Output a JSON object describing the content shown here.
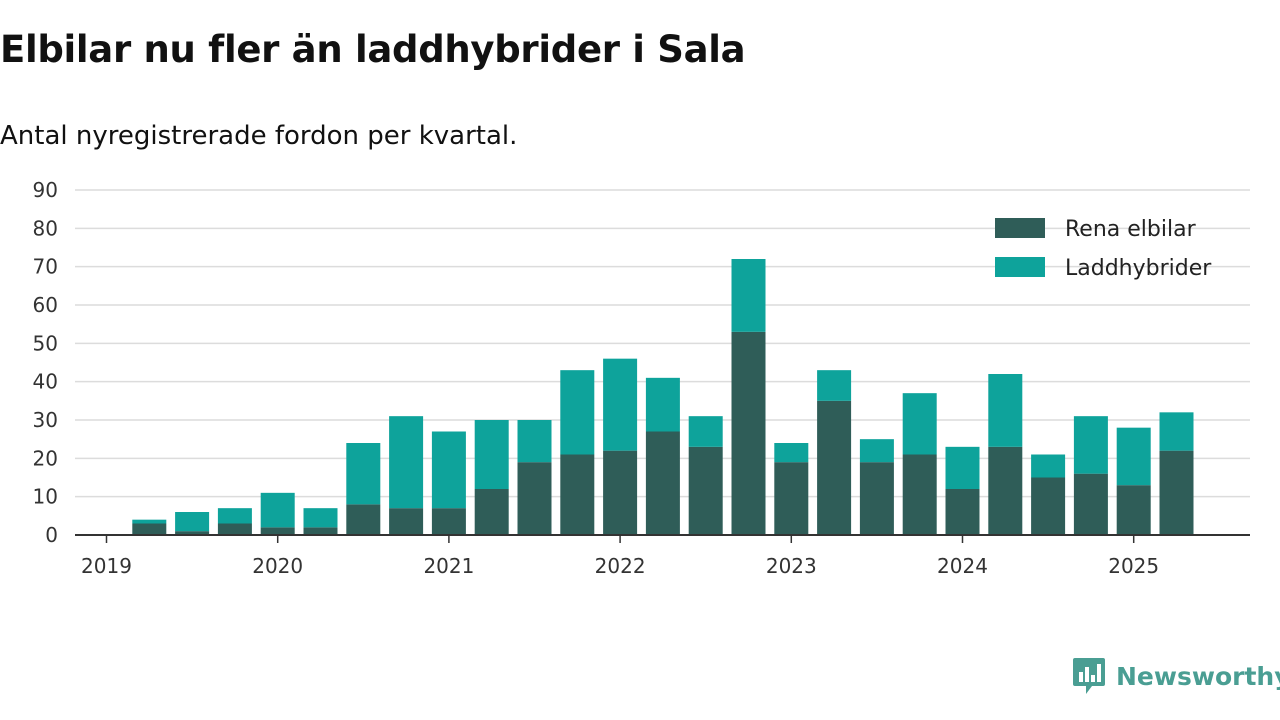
{
  "title": "Elbilar nu fler än laddhybrider i Sala",
  "subtitle": "Antal nyregistrerade fordon per kvartal.",
  "brand": "Newsworthy",
  "colors": {
    "elbilar": "#2f5d58",
    "laddhybrider": "#0ea39b",
    "grid": "#dcdcdc",
    "axis": "#333333"
  },
  "chart_data": {
    "type": "bar",
    "stacked": true,
    "categories": [
      "2019 Q1",
      "2019 Q2",
      "2019 Q3",
      "2019 Q4",
      "2020 Q1",
      "2020 Q2",
      "2020 Q3",
      "2020 Q4",
      "2021 Q1",
      "2021 Q2",
      "2021 Q3",
      "2021 Q4",
      "2022 Q1",
      "2022 Q2",
      "2022 Q3",
      "2022 Q4",
      "2023 Q1",
      "2023 Q2",
      "2023 Q3",
      "2023 Q4",
      "2024 Q1",
      "2024 Q2",
      "2024 Q3",
      "2024 Q4",
      "2025 Q1",
      "2025 Q2"
    ],
    "series": [
      {
        "name": "Rena elbilar",
        "values": [
          0,
          3,
          1,
          3,
          2,
          2,
          8,
          7,
          7,
          12,
          19,
          21,
          22,
          27,
          23,
          53,
          19,
          35,
          19,
          21,
          12,
          23,
          15,
          16,
          13,
          22
        ]
      },
      {
        "name": "Laddhybrider",
        "values": [
          0,
          1,
          5,
          4,
          9,
          5,
          16,
          24,
          20,
          18,
          11,
          22,
          24,
          14,
          8,
          19,
          5,
          8,
          6,
          16,
          11,
          19,
          6,
          15,
          15,
          10
        ]
      }
    ],
    "ylim": [
      0,
      90
    ],
    "yticks": [
      0,
      10,
      20,
      30,
      40,
      50,
      60,
      70,
      80,
      90
    ],
    "xticks": [
      "2019",
      "2020",
      "2021",
      "2022",
      "2023",
      "2024",
      "2025"
    ],
    "grid": true,
    "legend": "top-right"
  }
}
